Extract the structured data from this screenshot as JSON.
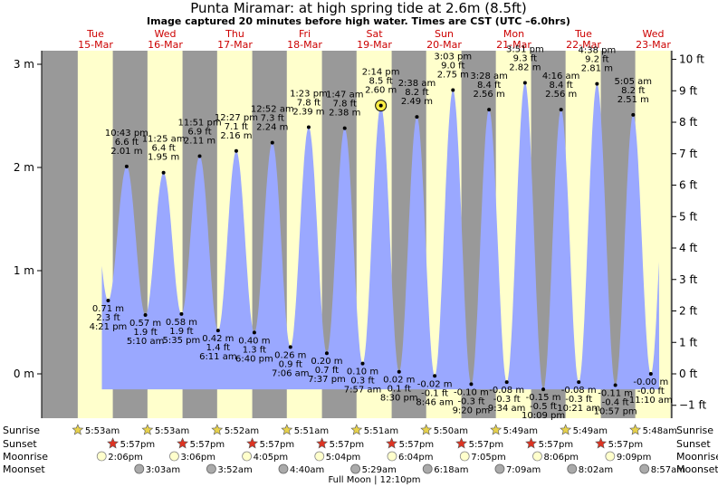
{
  "header": {
    "title": "Punta Miramar: at high  spring tide at 2.6m (8.5ft)",
    "subtitle": "Image captured 20 minutes before high water. Times are CST (UTC –6.0hrs)"
  },
  "colors": {
    "night": "#999999",
    "day": "#ffffcc",
    "tide": "#9aa8ff",
    "day_label": "#cc0000",
    "sun_star": "#e8d24a",
    "sunset_star": "#dd3322",
    "moonrise": "#ffffcc",
    "moonset": "#aaaaaa"
  },
  "days": [
    {
      "dow": "Tue",
      "date": "15-Mar"
    },
    {
      "dow": "Wed",
      "date": "16-Mar"
    },
    {
      "dow": "Thu",
      "date": "17-Mar"
    },
    {
      "dow": "Fri",
      "date": "18-Mar"
    },
    {
      "dow": "Sat",
      "date": "19-Mar"
    },
    {
      "dow": "Sun",
      "date": "20-Mar"
    },
    {
      "dow": "Mon",
      "date": "21-Mar"
    },
    {
      "dow": "Tue",
      "date": "22-Mar"
    },
    {
      "dow": "Wed",
      "date": "23-Mar"
    }
  ],
  "chart_data": {
    "type": "area",
    "title": "Punta Miramar: at high  spring tide at 2.6m (8.5ft)",
    "x_unit": "days from 00:00 Tue 15-Mar (CST)",
    "left_axis": {
      "unit": "m",
      "ticks": [
        0,
        1,
        2,
        3
      ],
      "labels": [
        "0 m",
        "1 m",
        "2 m",
        "3 m"
      ],
      "range": [
        -0.45,
        3.15
      ]
    },
    "right_axis": {
      "unit": "ft",
      "ticks": [
        -1,
        0,
        1,
        2,
        3,
        4,
        5,
        6,
        7,
        8,
        9,
        10
      ],
      "labels": [
        "−1 ft",
        "0 ft",
        "1 ft",
        "2 ft",
        "3 ft",
        "4 ft",
        "5 ft",
        "6 ft",
        "7 ft",
        "8 ft",
        "9 ft",
        "10 ft"
      ]
    },
    "x_range": [
      -0.5,
      8.5
    ],
    "current_marker": {
      "time": "2:14 pm",
      "day": "19-Mar",
      "height_m": 2.6
    },
    "tides": [
      {
        "type": "low",
        "time": "4:21 pm",
        "m": "0.71 m",
        "ft": "2.3 ft",
        "value": 0.71
      },
      {
        "type": "high",
        "time": "10:43 pm",
        "m": "2.01 m",
        "ft": "6.6 ft",
        "value": 2.01
      },
      {
        "type": "low",
        "time": "5:10 am",
        "m": "0.57 m",
        "ft": "1.9 ft",
        "value": 0.57
      },
      {
        "type": "high",
        "time": "11:25 am",
        "m": "1.95 m",
        "ft": "6.4 ft",
        "value": 1.95
      },
      {
        "type": "low",
        "time": "5:35 pm",
        "m": "0.58 m",
        "ft": "1.9 ft",
        "value": 0.58
      },
      {
        "type": "high",
        "time": "11:51 pm",
        "m": "2.11 m",
        "ft": "6.9 ft",
        "value": 2.11
      },
      {
        "type": "low",
        "time": "6:11 am",
        "m": "0.42 m",
        "ft": "1.4 ft",
        "value": 0.42
      },
      {
        "type": "high",
        "time": "12:27 pm",
        "m": "2.16 m",
        "ft": "7.1 ft",
        "value": 2.16
      },
      {
        "type": "low",
        "time": "6:40 pm",
        "m": "0.40 m",
        "ft": "1.3 ft",
        "value": 0.4
      },
      {
        "type": "high",
        "time": "12:52 am",
        "m": "2.24 m",
        "ft": "7.3 ft",
        "value": 2.24
      },
      {
        "type": "low",
        "time": "7:06 am",
        "m": "0.26 m",
        "ft": "0.9 ft",
        "value": 0.26
      },
      {
        "type": "high",
        "time": "1:23 pm",
        "m": "2.39 m",
        "ft": "7.8 ft",
        "value": 2.39
      },
      {
        "type": "low",
        "time": "7:37 pm",
        "m": "0.20 m",
        "ft": "0.7 ft",
        "value": 0.2
      },
      {
        "type": "high",
        "time": "1:47 am",
        "m": "2.38 m",
        "ft": "7.8 ft",
        "value": 2.38
      },
      {
        "type": "low",
        "time": "7:57 am",
        "m": "0.10 m",
        "ft": "0.3 ft",
        "value": 0.1
      },
      {
        "type": "high",
        "time": "2:14 pm",
        "m": "2.60 m",
        "ft": "8.5 ft",
        "value": 2.6
      },
      {
        "type": "low",
        "time": "8:30 pm",
        "m": "0.02 m",
        "ft": "0.1 ft",
        "value": 0.02
      },
      {
        "type": "high",
        "time": "2:38 am",
        "m": "2.49 m",
        "ft": "8.2 ft",
        "value": 2.49
      },
      {
        "type": "low",
        "time": "8:46 am",
        "m": "-0.02 m",
        "ft": "-0.1 ft",
        "value": -0.02
      },
      {
        "type": "high",
        "time": "3:03 pm",
        "m": "2.75 m",
        "ft": "9.0 ft",
        "value": 2.75
      },
      {
        "type": "low",
        "time": "9:20 pm",
        "m": "-0.10 m",
        "ft": "-0.3 ft",
        "value": -0.1
      },
      {
        "type": "high",
        "time": "3:28 am",
        "m": "2.56 m",
        "ft": "8.4 ft",
        "value": 2.56
      },
      {
        "type": "low",
        "time": "9:34 am",
        "m": "-0.08 m",
        "ft": "-0.3 ft",
        "value": -0.08
      },
      {
        "type": "high",
        "time": "3:51 pm",
        "m": "2.82 m",
        "ft": "9.3 ft",
        "value": 2.82
      },
      {
        "type": "low",
        "time": "10:09 pm",
        "m": "-0.15 m",
        "ft": "-0.5 ft",
        "value": -0.15
      },
      {
        "type": "high",
        "time": "4:16 am",
        "m": "2.56 m",
        "ft": "8.4 ft",
        "value": 2.56
      },
      {
        "type": "low",
        "time": "10:21 am",
        "m": "-0.08 m",
        "ft": "-0.3 ft",
        "value": -0.08
      },
      {
        "type": "high",
        "time": "4:38 pm",
        "m": "2.81 m",
        "ft": "9.2 ft",
        "value": 2.81
      },
      {
        "type": "low",
        "time": "10:57 pm",
        "m": "-0.11 m",
        "ft": "-0.4 ft",
        "value": -0.11
      },
      {
        "type": "high",
        "time": "5:05 am",
        "m": "2.51 m",
        "ft": "8.2 ft",
        "value": 2.51
      },
      {
        "type": "low",
        "time": "11:10 am",
        "m": "-0.00 m",
        "ft": "-0.0 ft",
        "value": -0.0
      }
    ]
  },
  "rows": {
    "labels": [
      "Sunrise",
      "Sunset",
      "Moonrise",
      "Moonset"
    ],
    "sunrise": [
      "5:53am",
      "5:53am",
      "5:52am",
      "5:51am",
      "5:51am",
      "5:50am",
      "5:49am",
      "5:49am",
      "5:48am"
    ],
    "sunset": [
      "5:57pm",
      "5:57pm",
      "5:57pm",
      "5:57pm",
      "5:57pm",
      "5:57pm",
      "5:57pm",
      "5:57pm"
    ],
    "moonrise": [
      "2:06pm",
      "3:06pm",
      "4:05pm",
      "5:04pm",
      "6:04pm",
      "7:05pm",
      "8:06pm",
      "9:09pm"
    ],
    "moonset": [
      "3:03am",
      "3:52am",
      "4:40am",
      "5:29am",
      "6:18am",
      "7:09am",
      "8:02am",
      "8:57am"
    ],
    "full_moon": "Full Moon | 12:10pm"
  }
}
